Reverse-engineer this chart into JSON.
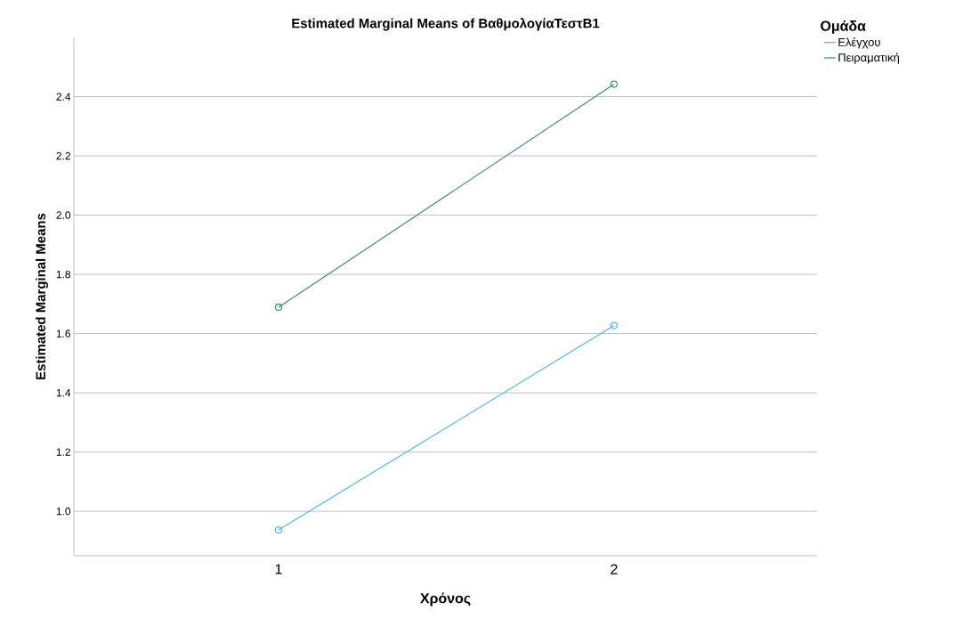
{
  "chart_data": {
    "type": "line",
    "title": "Estimated Marginal Means of ΒαθμολογίαΤεστΒ1",
    "xlabel": "Χρόνος",
    "ylabel": "Estimated Marginal Means",
    "legend_title": "Ομάδα",
    "categories": [
      "1",
      "2"
    ],
    "series": [
      {
        "name": "Ελέγχου",
        "color": "#52b5e9",
        "values": [
          0.937,
          1.627
        ]
      },
      {
        "name": "Πειραματική",
        "color": "#3d8a87",
        "values": [
          1.689,
          2.442
        ]
      }
    ],
    "ylim": [
      0.85,
      2.6
    ],
    "yticks": [
      {
        "value": 1.0,
        "label": "1.0"
      },
      {
        "value": 1.2,
        "label": "1.2"
      },
      {
        "value": 1.4,
        "label": "1.4"
      },
      {
        "value": 1.6,
        "label": "1.6"
      },
      {
        "value": 1.8,
        "label": "1.8"
      },
      {
        "value": 2.0,
        "label": "2.0"
      },
      {
        "value": 2.2,
        "label": "2.2"
      },
      {
        "value": 2.4,
        "label": "2.4"
      }
    ],
    "grid": "y",
    "legend": "top right",
    "marker": "circle",
    "line_style": "solid"
  }
}
